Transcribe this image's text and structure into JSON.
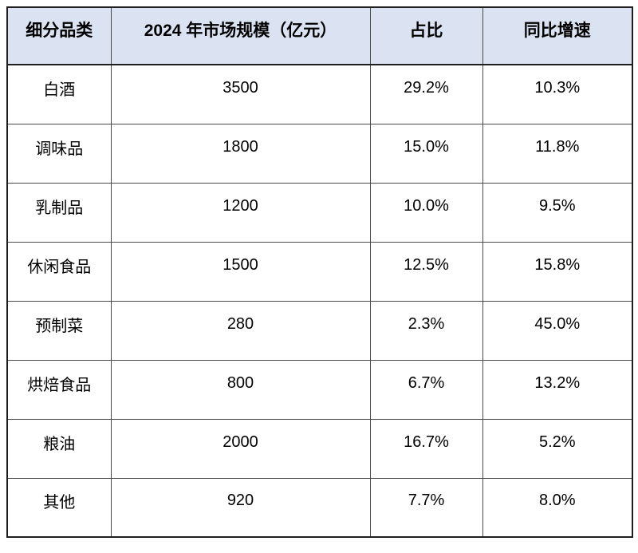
{
  "table": {
    "headers": [
      "细分品类",
      "2024 年市场规模（亿元）",
      "占比",
      "同比增速"
    ],
    "rows": [
      [
        "白酒",
        "3500",
        "29.2%",
        "10.3%"
      ],
      [
        "调味品",
        "1800",
        "15.0%",
        "11.8%"
      ],
      [
        "乳制品",
        "1200",
        "10.0%",
        "9.5%"
      ],
      [
        "休闲食品",
        "1500",
        "12.5%",
        "15.8%"
      ],
      [
        "预制菜",
        "280",
        "2.3%",
        "45.0%"
      ],
      [
        "烘焙食品",
        "800",
        "6.7%",
        "13.2%"
      ],
      [
        "粮油",
        "2000",
        "16.7%",
        "5.2%"
      ],
      [
        "其他",
        "920",
        "7.7%",
        "8.0%"
      ]
    ],
    "colors": {
      "header_bg": "#dbe2f1",
      "inner_border": "#4a4a4a",
      "outer_border": "#1f1f1f",
      "text": "#000000",
      "page_bg": "#ffffff"
    }
  }
}
